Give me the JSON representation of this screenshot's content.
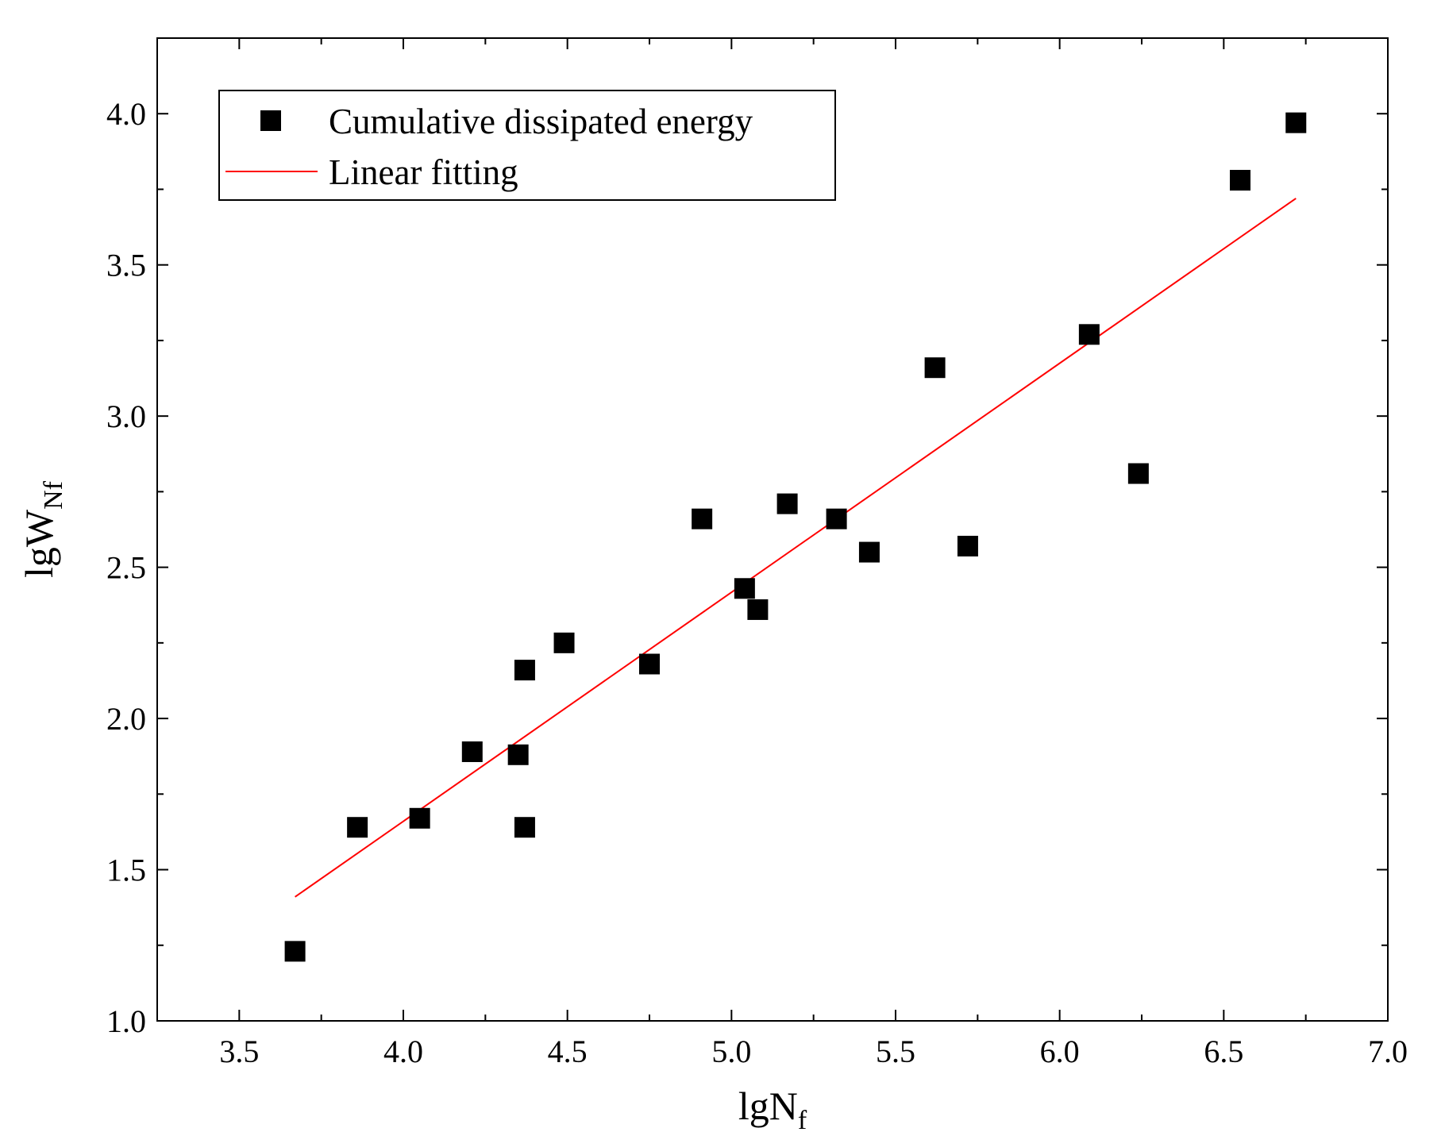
{
  "chart_data": {
    "type": "scatter",
    "title": "",
    "xlabel": {
      "main": "lgN",
      "sub": "f"
    },
    "ylabel": {
      "main": "lgW",
      "sub": "Nf"
    },
    "xlim": [
      3.25,
      7.0
    ],
    "ylim": [
      1.0,
      4.25
    ],
    "xticks": [
      3.5,
      4.0,
      4.5,
      5.0,
      5.5,
      6.0,
      6.5,
      7.0
    ],
    "yticks": [
      1.0,
      1.5,
      2.0,
      2.5,
      3.0,
      3.5,
      4.0
    ],
    "xtick_labels": [
      "3.5",
      "4.0",
      "4.5",
      "5.0",
      "5.5",
      "6.0",
      "6.5",
      "7.0"
    ],
    "ytick_labels": [
      "1.0",
      "1.5",
      "2.0",
      "2.5",
      "3.0",
      "3.5",
      "4.0"
    ],
    "grid": false,
    "legend_position": "top-left",
    "series": [
      {
        "name": "Cumulative dissipated energy",
        "kind": "scatter",
        "marker": "square",
        "color": "#000000",
        "x": [
          3.67,
          3.86,
          4.05,
          4.21,
          4.35,
          4.37,
          4.37,
          4.49,
          4.75,
          4.91,
          5.04,
          5.08,
          5.17,
          5.32,
          5.42,
          5.62,
          5.72,
          6.09,
          6.24,
          6.55,
          6.72
        ],
        "y": [
          1.23,
          1.64,
          1.67,
          1.89,
          1.88,
          2.16,
          1.64,
          2.25,
          2.18,
          2.66,
          2.43,
          2.36,
          2.71,
          2.66,
          2.55,
          3.16,
          2.57,
          3.27,
          2.81,
          3.78,
          3.97
        ]
      },
      {
        "name": "Linear fitting",
        "kind": "line",
        "color": "#ff0000",
        "x": [
          3.67,
          6.72
        ],
        "y": [
          1.41,
          3.72
        ]
      }
    ]
  }
}
